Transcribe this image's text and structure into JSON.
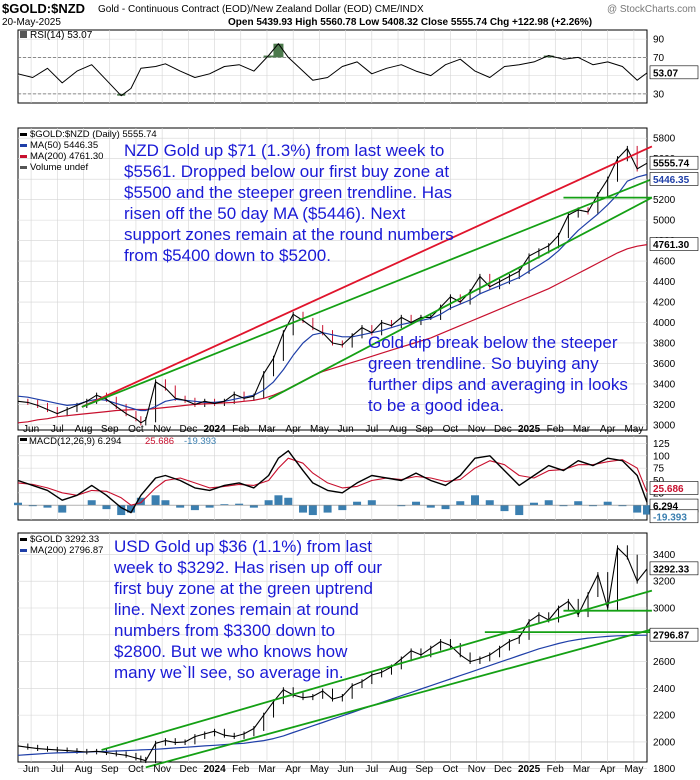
{
  "header": {
    "symbol": "$GOLD:$NZD",
    "description": "Gold - Continuous Contract (EOD)/New Zealand Dollar (EOD) CME/INDX",
    "date": "20-May-2025",
    "watermark": "@ StockCharts.com",
    "ohlc": "Open 5439.93  High 5560.78  Low 5408.32  Close 5555.74  Chg +122.98 (+2.26%)"
  },
  "x_axis": {
    "labels": [
      "Jun",
      "Jul",
      "Aug",
      "Sep",
      "Oct",
      "Nov",
      "Dec",
      "2024",
      "Feb",
      "Mar",
      "Apr",
      "May",
      "Jun",
      "Jul",
      "Aug",
      "Sep",
      "Oct",
      "Nov",
      "Dec",
      "2025",
      "Feb",
      "Mar",
      "Apr",
      "May"
    ],
    "bold": [
      "2024",
      "2025"
    ]
  },
  "colors": {
    "price": "#000000",
    "down_bar": "#c8102e",
    "ma50": "#1f3fa8",
    "ma200": "#c8102e",
    "trend_red": "#e0142c",
    "trend_green": "#14a014",
    "macd_hist": "#3b7fb0",
    "annotation": "#1a1ad6",
    "rsi_fill": "#4d7a4d",
    "grid": "#d4d4d4"
  },
  "chart_data": [
    {
      "type": "line",
      "panel": "rsi",
      "legend": "RSI(14) 53.07",
      "ylim": [
        20,
        100
      ],
      "y_ticks": [
        90,
        70,
        50,
        30
      ],
      "reference_lines": [
        70,
        30
      ],
      "last_label": "53.07",
      "x": [
        0,
        15,
        30,
        45,
        60,
        75,
        90,
        105,
        115,
        125,
        140,
        150,
        165,
        180,
        195,
        210,
        225,
        240,
        255,
        265,
        275,
        290,
        300,
        315,
        330,
        345,
        360,
        375,
        390,
        405,
        420,
        435,
        450,
        465,
        480,
        495,
        510,
        525,
        540,
        555,
        570,
        585,
        600,
        615,
        630,
        640
      ],
      "values": [
        52,
        48,
        58,
        42,
        55,
        62,
        45,
        28,
        36,
        58,
        60,
        63,
        55,
        48,
        52,
        60,
        62,
        55,
        72,
        85,
        70,
        55,
        45,
        48,
        60,
        65,
        52,
        58,
        62,
        55,
        50,
        62,
        68,
        55,
        48,
        60,
        62,
        65,
        72,
        68,
        70,
        62,
        65,
        60,
        45,
        53
      ]
    },
    {
      "type": "line",
      "panel": "nzd_price",
      "legend": [
        {
          "name": "$GOLD:$NZD (Daily) 5555.74",
          "color": "#000000"
        },
        {
          "name": "MA(50) 5446.35",
          "color": "#1f3fa8"
        },
        {
          "name": "MA(200) 4761.30",
          "color": "#c8102e"
        },
        {
          "name": "Volume undef",
          "color": "#555555"
        }
      ],
      "ylim": [
        2950,
        5900
      ],
      "y_ticks": [
        5800,
        5600,
        5400,
        5200,
        5000,
        4800,
        4600,
        4400,
        4200,
        4000,
        3800,
        3600,
        3400,
        3200,
        3000
      ],
      "price_labels": [
        "5555.74",
        "5446.35",
        "4761.30"
      ],
      "x": [
        0,
        10,
        20,
        30,
        40,
        50,
        60,
        70,
        80,
        90,
        100,
        110,
        120,
        125,
        130,
        140,
        150,
        160,
        170,
        180,
        190,
        200,
        210,
        220,
        230,
        240,
        250,
        260,
        270,
        280,
        290,
        300,
        310,
        320,
        330,
        340,
        350,
        360,
        370,
        380,
        390,
        400,
        410,
        420,
        430,
        440,
        450,
        460,
        470,
        480,
        490,
        500,
        510,
        520,
        530,
        540,
        550,
        560,
        570,
        580,
        590,
        600,
        610,
        620,
        630,
        640
      ],
      "series": [
        {
          "name": "Price",
          "values": [
            3230,
            3220,
            3190,
            3150,
            3110,
            3150,
            3190,
            3230,
            3290,
            3250,
            3180,
            3110,
            3060,
            3020,
            3050,
            3420,
            3360,
            3260,
            3240,
            3200,
            3230,
            3210,
            3230,
            3300,
            3260,
            3280,
            3500,
            3650,
            3900,
            4080,
            4020,
            3950,
            3900,
            3800,
            3780,
            3870,
            3950,
            3900,
            4000,
            3970,
            4050,
            4000,
            4050,
            4050,
            4150,
            4250,
            4200,
            4300,
            4450,
            4350,
            4400,
            4450,
            4500,
            4650,
            4700,
            4750,
            4850,
            5050,
            5100,
            5080,
            5250,
            5400,
            5600,
            5700,
            5500,
            5556
          ]
        },
        {
          "name": "MA(50)",
          "values": [
            3280,
            3270,
            3250,
            3230,
            3210,
            3190,
            3200,
            3230,
            3250,
            3240,
            3210,
            3180,
            3150,
            3140,
            3140,
            3180,
            3230,
            3250,
            3240,
            3230,
            3220,
            3220,
            3230,
            3250,
            3270,
            3290,
            3340,
            3420,
            3540,
            3680,
            3800,
            3880,
            3900,
            3880,
            3860,
            3860,
            3880,
            3900,
            3920,
            3950,
            3980,
            4000,
            4020,
            4040,
            4080,
            4140,
            4180,
            4220,
            4280,
            4320,
            4360,
            4400,
            4440,
            4500,
            4560,
            4620,
            4700,
            4800,
            4900,
            4980,
            5060,
            5150,
            5250,
            5380,
            5420,
            5446
          ]
        },
        {
          "name": "MA(200)",
          "values": [
            3020,
            3030,
            3050,
            3060,
            3080,
            3090,
            3100,
            3110,
            3120,
            3130,
            3140,
            3145,
            3150,
            3150,
            3150,
            3160,
            3170,
            3180,
            3190,
            3200,
            3205,
            3210,
            3215,
            3220,
            3230,
            3240,
            3260,
            3290,
            3330,
            3380,
            3430,
            3480,
            3520,
            3550,
            3580,
            3610,
            3640,
            3670,
            3700,
            3730,
            3760,
            3790,
            3820,
            3850,
            3890,
            3930,
            3970,
            4010,
            4050,
            4090,
            4130,
            4170,
            4210,
            4250,
            4290,
            4330,
            4380,
            4430,
            4480,
            4530,
            4580,
            4630,
            4680,
            4720,
            4745,
            4761
          ]
        }
      ],
      "trendlines": [
        {
          "color": "red",
          "from": [
            65,
            3175
          ],
          "to": [
            645,
            5720
          ]
        },
        {
          "color": "green",
          "from": [
            65,
            3175
          ],
          "to": [
            645,
            5400
          ]
        },
        {
          "color": "green",
          "from": [
            255,
            3250
          ],
          "to": [
            645,
            5220
          ]
        },
        {
          "color": "green",
          "from": [
            555,
            5220
          ],
          "to": [
            645,
            5220
          ]
        }
      ]
    },
    {
      "type": "line",
      "panel": "macd",
      "legend": [
        {
          "name": "MACD(12,26,9) 6.294",
          "color": "#000000"
        },
        {
          "name": "25.686",
          "color": "#c8102e"
        },
        {
          "name": "-19.393",
          "color": "#3b7fb0"
        }
      ],
      "ylim": [
        -30,
        140
      ],
      "y_ticks": [
        125,
        100,
        75,
        50,
        25,
        0
      ],
      "price_labels": [
        "25.686",
        "6.294",
        "-19.393"
      ],
      "x": [
        0,
        15,
        30,
        45,
        60,
        75,
        90,
        105,
        115,
        125,
        140,
        150,
        165,
        180,
        195,
        210,
        225,
        240,
        255,
        265,
        275,
        290,
        300,
        315,
        330,
        345,
        360,
        375,
        390,
        405,
        420,
        435,
        450,
        465,
        480,
        495,
        510,
        525,
        540,
        555,
        570,
        585,
        600,
        615,
        630,
        640
      ],
      "series": [
        {
          "name": "MACD",
          "values": [
            50,
            40,
            30,
            10,
            20,
            40,
            20,
            -5,
            -15,
            20,
            55,
            60,
            50,
            35,
            30,
            40,
            45,
            35,
            60,
            95,
            110,
            70,
            45,
            30,
            25,
            45,
            60,
            55,
            50,
            65,
            50,
            40,
            60,
            95,
            100,
            70,
            40,
            60,
            80,
            70,
            90,
            80,
            95,
            90,
            60,
            6
          ]
        },
        {
          "name": "Signal",
          "values": [
            45,
            42,
            35,
            25,
            20,
            30,
            28,
            15,
            0,
            5,
            35,
            50,
            55,
            45,
            35,
            38,
            42,
            40,
            50,
            75,
            95,
            85,
            65,
            45,
            35,
            38,
            50,
            55,
            52,
            58,
            55,
            48,
            52,
            75,
            90,
            82,
            60,
            55,
            70,
            72,
            82,
            82,
            88,
            92,
            75,
            26
          ]
        },
        {
          "name": "Histogram",
          "values": [
            5,
            -2,
            -5,
            -15,
            0,
            10,
            -8,
            -20,
            -15,
            15,
            20,
            10,
            -5,
            -10,
            -5,
            2,
            3,
            -5,
            10,
            20,
            15,
            -15,
            -20,
            -15,
            -10,
            7,
            10,
            0,
            -2,
            7,
            -5,
            -8,
            8,
            20,
            10,
            -12,
            -20,
            5,
            10,
            -2,
            8,
            -2,
            7,
            -2,
            -15,
            -19
          ]
        }
      ]
    },
    {
      "type": "line",
      "panel": "usd_price",
      "legend": [
        {
          "name": "$GOLD 3292.33",
          "color": "#000000"
        },
        {
          "name": "MA(200) 2796.87",
          "color": "#1f3fa8"
        }
      ],
      "ylim": [
        1850,
        3560
      ],
      "y_ticks": [
        3400,
        3200,
        3000,
        2800,
        2600,
        2400,
        2200,
        2000,
        1800
      ],
      "price_labels": [
        "3292.33",
        "2796.87"
      ],
      "x": [
        0,
        10,
        20,
        30,
        40,
        50,
        60,
        70,
        80,
        90,
        100,
        110,
        120,
        125,
        130,
        140,
        150,
        160,
        170,
        180,
        190,
        200,
        210,
        220,
        230,
        240,
        250,
        260,
        270,
        280,
        290,
        300,
        310,
        320,
        330,
        340,
        350,
        360,
        370,
        380,
        390,
        400,
        410,
        420,
        430,
        440,
        450,
        460,
        470,
        480,
        490,
        500,
        510,
        520,
        530,
        540,
        550,
        560,
        570,
        580,
        590,
        600,
        610,
        620,
        630,
        640
      ],
      "series": [
        {
          "name": "Price",
          "values": [
            1970,
            1960,
            1950,
            1945,
            1940,
            1935,
            1930,
            1925,
            1930,
            1920,
            1910,
            1900,
            1880,
            1870,
            1860,
            1990,
            2010,
            1995,
            2000,
            2040,
            2060,
            2080,
            2050,
            2040,
            2060,
            2100,
            2200,
            2300,
            2390,
            2350,
            2330,
            2340,
            2380,
            2320,
            2340,
            2420,
            2450,
            2500,
            2520,
            2560,
            2620,
            2680,
            2650,
            2700,
            2750,
            2720,
            2650,
            2600,
            2620,
            2650,
            2700,
            2750,
            2780,
            2900,
            2950,
            2910,
            3000,
            3050,
            2950,
            3100,
            3250,
            3000,
            3450,
            3380,
            3200,
            3292
          ]
        },
        {
          "name": "MA(200)",
          "values": [
            1900,
            1905,
            1910,
            1915,
            1918,
            1920,
            1922,
            1925,
            1928,
            1930,
            1932,
            1935,
            1938,
            1940,
            1942,
            1945,
            1950,
            1955,
            1960,
            1965,
            1970,
            1975,
            1980,
            1985,
            1990,
            2000,
            2010,
            2025,
            2045,
            2070,
            2095,
            2120,
            2145,
            2170,
            2195,
            2220,
            2245,
            2270,
            2295,
            2320,
            2345,
            2370,
            2395,
            2420,
            2445,
            2470,
            2495,
            2520,
            2545,
            2570,
            2595,
            2620,
            2645,
            2670,
            2695,
            2715,
            2735,
            2752,
            2765,
            2775,
            2782,
            2788,
            2792,
            2794,
            2796,
            2797
          ]
        }
      ],
      "trendlines": [
        {
          "color": "green",
          "from": [
            85,
            1940
          ],
          "to": [
            645,
            3130
          ]
        },
        {
          "color": "green",
          "from": [
            130,
            1810
          ],
          "to": [
            645,
            2840
          ]
        },
        {
          "color": "green",
          "from": [
            555,
            2980
          ],
          "to": [
            645,
            2980
          ]
        },
        {
          "color": "green",
          "from": [
            475,
            2820
          ],
          "to": [
            645,
            2820
          ]
        }
      ]
    }
  ],
  "annotations": {
    "nzd_main": "NZD Gold up $71 (1.3%) from last week to $5561. Dropped below our first buy zone at $5500 and the steeper green trendline. Has risen off the 50 day MA ($5446). Next support zones remain at the round numbers from $5400 down to $5200.",
    "nzd_dip": "Gold dip break below the steeper green trendline. So buying any further dips and averaging in looks to be a good idea.",
    "usd_main": "USD Gold up $36 (1.1%) from last week to $3292. Has risen up off our first buy zone at the green uptrend line. Next zones remain at round numbers from $3300 down to $2800. But we who knows how many we`ll see, so average in."
  }
}
